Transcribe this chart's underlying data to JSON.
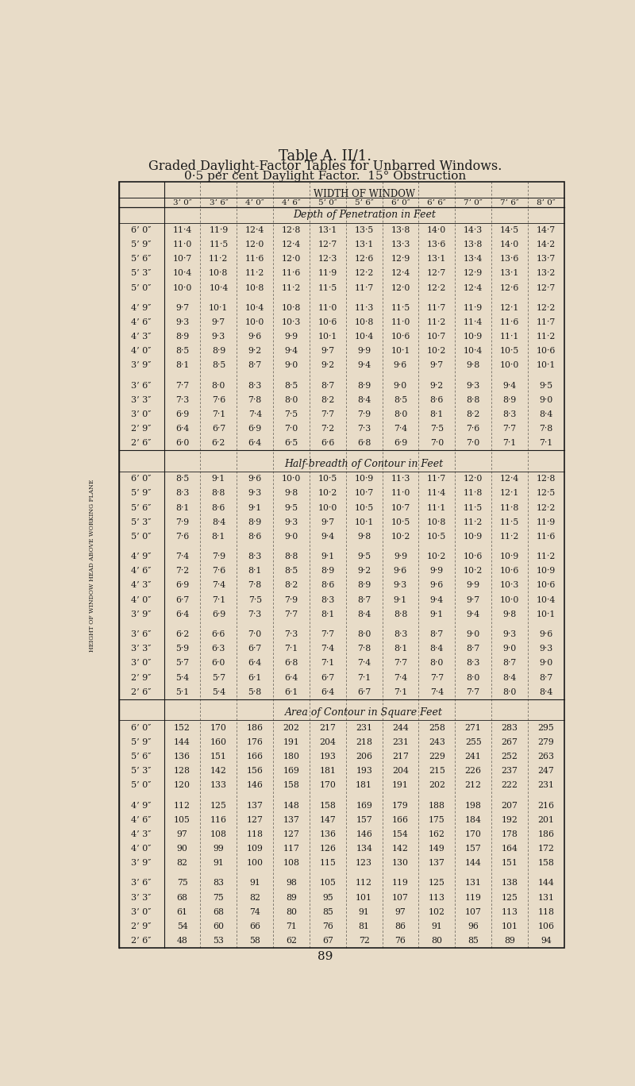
{
  "title1": "Table A. II/1.",
  "title2": "Graded Daylight-Factor Tables for Unbarred Windows.",
  "title3": "0·5 per cent Daylight Factor.  15° Obstruction",
  "col_header": "WIDTH OF WINDOW",
  "col_labels": [
    "3’ 0″",
    "3’ 6″",
    "4’ 0″",
    "4’ 6″",
    "5’ 0″",
    "5’ 6″",
    "6’ 0″",
    "6’ 6″",
    "7’ 0″",
    "7’ 6″",
    "8’ 0″"
  ],
  "row_label_col": "HEIGHT OF WINDOW HEAD ABOVE WORKING PLANE",
  "section1_title": "Depth of Penetration in Feet",
  "section1_rows": [
    [
      "6’ 0″",
      "11·4",
      "11·9",
      "12·4",
      "12·8",
      "13·1",
      "13·5",
      "13·8",
      "14·0",
      "14·3",
      "14·5",
      "14·7"
    ],
    [
      "5’ 9″",
      "11·0",
      "11·5",
      "12·0",
      "12·4",
      "12·7",
      "13·1",
      "13·3",
      "13·6",
      "13·8",
      "14·0",
      "14·2"
    ],
    [
      "5’ 6″",
      "10·7",
      "11·2",
      "11·6",
      "12·0",
      "12·3",
      "12·6",
      "12·9",
      "13·1",
      "13·4",
      "13·6",
      "13·7"
    ],
    [
      "5’ 3″",
      "10·4",
      "10·8",
      "11·2",
      "11·6",
      "11·9",
      "12·2",
      "12·4",
      "12·7",
      "12·9",
      "13·1",
      "13·2"
    ],
    [
      "5’ 0″",
      "10·0",
      "10·4",
      "10·8",
      "11·2",
      "11·5",
      "11·7",
      "12·0",
      "12·2",
      "12·4",
      "12·6",
      "12·7"
    ],
    [
      "4’ 9″",
      "9·7",
      "10·1",
      "10·4",
      "10·8",
      "11·0",
      "11·3",
      "11·5",
      "11·7",
      "11·9",
      "12·1",
      "12·2"
    ],
    [
      "4’ 6″",
      "9·3",
      "9·7",
      "10·0",
      "10·3",
      "10·6",
      "10·8",
      "11·0",
      "11·2",
      "11·4",
      "11·6",
      "11·7"
    ],
    [
      "4’ 3″",
      "8·9",
      "9·3",
      "9·6",
      "9·9",
      "10·1",
      "10·4",
      "10·6",
      "10·7",
      "10·9",
      "11·1",
      "11·2"
    ],
    [
      "4’ 0″",
      "8·5",
      "8·9",
      "9·2",
      "9·4",
      "9·7",
      "9·9",
      "10·1",
      "10·2",
      "10·4",
      "10·5",
      "10·6"
    ],
    [
      "3’ 9″",
      "8·1",
      "8·5",
      "8·7",
      "9·0",
      "9·2",
      "9·4",
      "9·6",
      "9·7",
      "9·8",
      "10·0",
      "10·1"
    ],
    [
      "3’ 6″",
      "7·7",
      "8·0",
      "8·3",
      "8·5",
      "8·7",
      "8·9",
      "9·0",
      "9·2",
      "9·3",
      "9·4",
      "9·5"
    ],
    [
      "3’ 3″",
      "7·3",
      "7·6",
      "7·8",
      "8·0",
      "8·2",
      "8·4",
      "8·5",
      "8·6",
      "8·8",
      "8·9",
      "9·0"
    ],
    [
      "3’ 0″",
      "6·9",
      "7·1",
      "7·4",
      "7·5",
      "7·7",
      "7·9",
      "8·0",
      "8·1",
      "8·2",
      "8·3",
      "8·4"
    ],
    [
      "2’ 9″",
      "6·4",
      "6·7",
      "6·9",
      "7·0",
      "7·2",
      "7·3",
      "7·4",
      "7·5",
      "7·6",
      "7·7",
      "7·8"
    ],
    [
      "2’ 6″",
      "6·0",
      "6·2",
      "6·4",
      "6·5",
      "6·6",
      "6·8",
      "6·9",
      "7·0",
      "7·0",
      "7·1",
      "7·1"
    ]
  ],
  "section2_title": "Half-breadth of Contour in Feet",
  "section2_rows": [
    [
      "6’ 0″",
      "8·5",
      "9·1",
      "9·6",
      "10·0",
      "10·5",
      "10·9",
      "11·3",
      "11·7",
      "12·0",
      "12·4",
      "12·8"
    ],
    [
      "5’ 9″",
      "8·3",
      "8·8",
      "9·3",
      "9·8",
      "10·2",
      "10·7",
      "11·0",
      "11·4",
      "11·8",
      "12·1",
      "12·5"
    ],
    [
      "5’ 6″",
      "8·1",
      "8·6",
      "9·1",
      "9·5",
      "10·0",
      "10·5",
      "10·7",
      "11·1",
      "11·5",
      "11·8",
      "12·2"
    ],
    [
      "5’ 3″",
      "7·9",
      "8·4",
      "8·9",
      "9·3",
      "9·7",
      "10·1",
      "10·5",
      "10·8",
      "11·2",
      "11·5",
      "11·9"
    ],
    [
      "5’ 0″",
      "7·6",
      "8·1",
      "8·6",
      "9·0",
      "9·4",
      "9·8",
      "10·2",
      "10·5",
      "10·9",
      "11·2",
      "11·6"
    ],
    [
      "4’ 9″",
      "7·4",
      "7·9",
      "8·3",
      "8·8",
      "9·1",
      "9·5",
      "9·9",
      "10·2",
      "10·6",
      "10·9",
      "11·2"
    ],
    [
      "4’ 6″",
      "7·2",
      "7·6",
      "8·1",
      "8·5",
      "8·9",
      "9·2",
      "9·6",
      "9·9",
      "10·2",
      "10·6",
      "10·9"
    ],
    [
      "4’ 3″",
      "6·9",
      "7·4",
      "7·8",
      "8·2",
      "8·6",
      "8·9",
      "9·3",
      "9·6",
      "9·9",
      "10·3",
      "10·6"
    ],
    [
      "4’ 0″",
      "6·7",
      "7·1",
      "7·5",
      "7·9",
      "8·3",
      "8·7",
      "9·1",
      "9·4",
      "9·7",
      "10·0",
      "10·4"
    ],
    [
      "3’ 9″",
      "6·4",
      "6·9",
      "7·3",
      "7·7",
      "8·1",
      "8·4",
      "8·8",
      "9·1",
      "9·4",
      "9·8",
      "10·1"
    ],
    [
      "3’ 6″",
      "6·2",
      "6·6",
      "7·0",
      "7·3",
      "7·7",
      "8·0",
      "8·3",
      "8·7",
      "9·0",
      "9·3",
      "9·6"
    ],
    [
      "3’ 3″",
      "5·9",
      "6·3",
      "6·7",
      "7·1",
      "7·4",
      "7·8",
      "8·1",
      "8·4",
      "8·7",
      "9·0",
      "9·3"
    ],
    [
      "3’ 0″",
      "5·7",
      "6·0",
      "6·4",
      "6·8",
      "7·1",
      "7·4",
      "7·7",
      "8·0",
      "8·3",
      "8·7",
      "9·0"
    ],
    [
      "2’ 9″",
      "5·4",
      "5·7",
      "6·1",
      "6·4",
      "6·7",
      "7·1",
      "7·4",
      "7·7",
      "8·0",
      "8·4",
      "8·7"
    ],
    [
      "2’ 6″",
      "5·1",
      "5·4",
      "5·8",
      "6·1",
      "6·4",
      "6·7",
      "7·1",
      "7·4",
      "7·7",
      "8·0",
      "8·4"
    ]
  ],
  "section3_title": "Area of Contour in Square Feet",
  "section3_rows": [
    [
      "6’ 0″",
      "152",
      "170",
      "186",
      "202",
      "217",
      "231",
      "244",
      "258",
      "271",
      "283",
      "295"
    ],
    [
      "5’ 9″",
      "144",
      "160",
      "176",
      "191",
      "204",
      "218",
      "231",
      "243",
      "255",
      "267",
      "279"
    ],
    [
      "5’ 6″",
      "136",
      "151",
      "166",
      "180",
      "193",
      "206",
      "217",
      "229",
      "241",
      "252",
      "263"
    ],
    [
      "5’ 3″",
      "128",
      "142",
      "156",
      "169",
      "181",
      "193",
      "204",
      "215",
      "226",
      "237",
      "247"
    ],
    [
      "5’ 0″",
      "120",
      "133",
      "146",
      "158",
      "170",
      "181",
      "191",
      "202",
      "212",
      "222",
      "231"
    ],
    [
      "4’ 9″",
      "112",
      "125",
      "137",
      "148",
      "158",
      "169",
      "179",
      "188",
      "198",
      "207",
      "216"
    ],
    [
      "4’ 6″",
      "105",
      "116",
      "127",
      "137",
      "147",
      "157",
      "166",
      "175",
      "184",
      "192",
      "201"
    ],
    [
      "4’ 3″",
      "97",
      "108",
      "118",
      "127",
      "136",
      "146",
      "154",
      "162",
      "170",
      "178",
      "186"
    ],
    [
      "4’ 0″",
      "90",
      "99",
      "109",
      "117",
      "126",
      "134",
      "142",
      "149",
      "157",
      "164",
      "172"
    ],
    [
      "3’ 9″",
      "82",
      "91",
      "100",
      "108",
      "115",
      "123",
      "130",
      "137",
      "144",
      "151",
      "158"
    ],
    [
      "3’ 6″",
      "75",
      "83",
      "91",
      "98",
      "105",
      "112",
      "119",
      "125",
      "131",
      "138",
      "144"
    ],
    [
      "3’ 3″",
      "68",
      "75",
      "82",
      "89",
      "95",
      "101",
      "107",
      "113",
      "119",
      "125",
      "131"
    ],
    [
      "3’ 0″",
      "61",
      "68",
      "74",
      "80",
      "85",
      "91",
      "97",
      "102",
      "107",
      "113",
      "118"
    ],
    [
      "2’ 9″",
      "54",
      "60",
      "66",
      "71",
      "76",
      "81",
      "86",
      "91",
      "96",
      "101",
      "106"
    ],
    [
      "2’ 6″",
      "48",
      "53",
      "58",
      "62",
      "67",
      "72",
      "76",
      "80",
      "85",
      "89",
      "94"
    ]
  ],
  "bg_color": "#e8dcc8",
  "page_number": "89"
}
